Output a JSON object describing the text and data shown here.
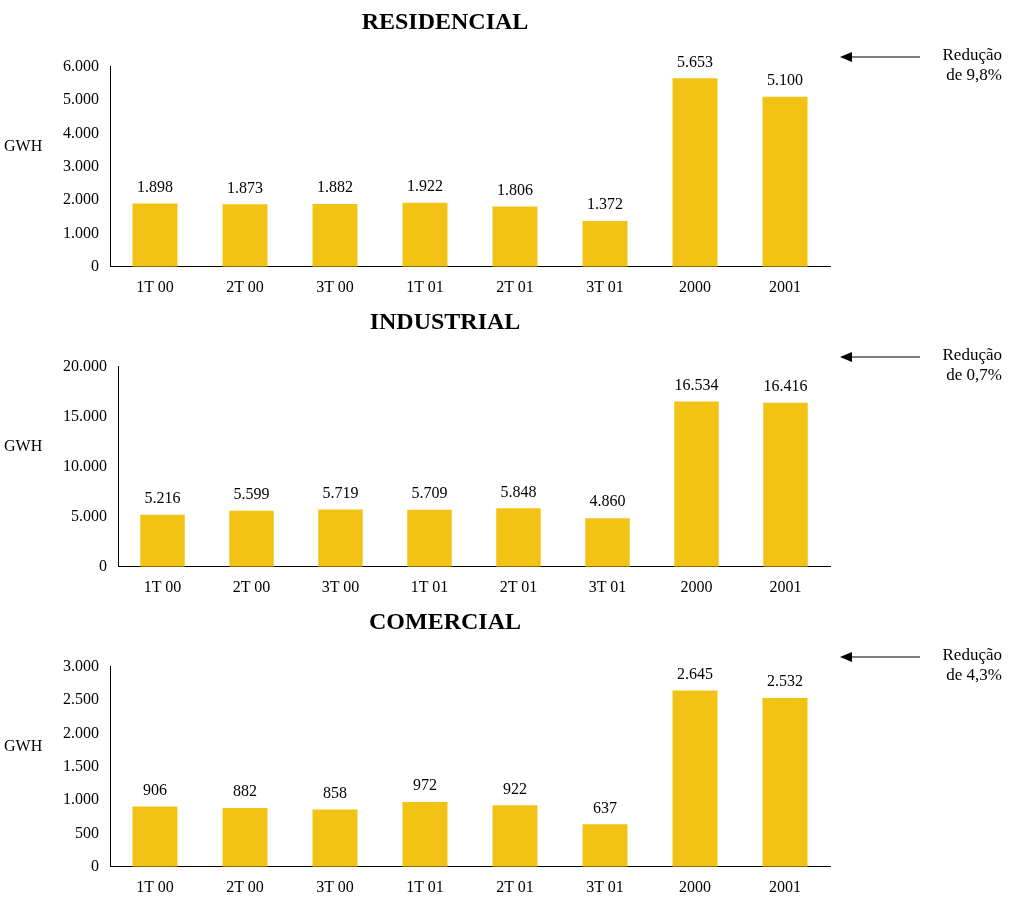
{
  "chart_data": [
    {
      "type": "bar",
      "title": "RESIDENCIAL",
      "ylabel": "GWH",
      "categories": [
        "1T 00",
        "2T 00",
        "3T 00",
        "1T 01",
        "2T 01",
        "3T 01",
        "2000",
        "2001"
      ],
      "values": [
        1898,
        1873,
        1882,
        1922,
        1806,
        1372,
        5653,
        5100
      ],
      "value_labels": [
        "1.898",
        "1.873",
        "1.882",
        "1.922",
        "1.806",
        "1.372",
        "5.653",
        "5.100"
      ],
      "color": "#f2c314",
      "ylim": [
        0,
        6000
      ],
      "yticks": [
        {
          "value": 0,
          "label": "0"
        },
        {
          "value": 1000,
          "label": "1.000"
        },
        {
          "value": 2000,
          "label": "2.000"
        },
        {
          "value": 3000,
          "label": "3.000"
        },
        {
          "value": 4000,
          "label": "4.000"
        },
        {
          "value": 5000,
          "label": "5.000"
        },
        {
          "value": 6000,
          "label": "6.000"
        }
      ],
      "annotations": [
        "Redução de 9,8%"
      ]
    },
    {
      "type": "bar",
      "title": "INDUSTRIAL",
      "ylabel": "GWH",
      "categories": [
        "1T 00",
        "2T 00",
        "3T 00",
        "1T 01",
        "2T 01",
        "3T 01",
        "2000",
        "2001"
      ],
      "values": [
        5216,
        5599,
        5719,
        5709,
        5848,
        4860,
        16534,
        16416
      ],
      "value_labels": [
        "5.216",
        "5.599",
        "5.719",
        "5.709",
        "5.848",
        "4.860",
        "16.534",
        "16.416"
      ],
      "color": "#f2c314",
      "ylim": [
        0,
        20000
      ],
      "yticks": [
        {
          "value": 0,
          "label": "0"
        },
        {
          "value": 5000,
          "label": "5.000"
        },
        {
          "value": 10000,
          "label": "10.000"
        },
        {
          "value": 15000,
          "label": "15.000"
        },
        {
          "value": 20000,
          "label": "20.000"
        }
      ],
      "annotations": [
        "Redução de 0,7%"
      ]
    },
    {
      "type": "bar",
      "title": "COMERCIAL",
      "ylabel": "GWH",
      "categories": [
        "1T 00",
        "2T 00",
        "3T 00",
        "1T 01",
        "2T 01",
        "3T 01",
        "2000",
        "2001"
      ],
      "values": [
        906,
        882,
        858,
        972,
        922,
        637,
        2645,
        2532
      ],
      "value_labels": [
        "906",
        "882",
        "858",
        "972",
        "922",
        "637",
        "2.645",
        "2.532"
      ],
      "color": "#f2c314",
      "ylim": [
        0,
        3000
      ],
      "yticks": [
        {
          "value": 0,
          "label": "0"
        },
        {
          "value": 500,
          "label": "500"
        },
        {
          "value": 1000,
          "label": "1.000"
        },
        {
          "value": 1500,
          "label": "1.500"
        },
        {
          "value": 2000,
          "label": "2.000"
        },
        {
          "value": 2500,
          "label": "2.500"
        },
        {
          "value": 3000,
          "label": "3.000"
        }
      ],
      "annotations": [
        "Redução de 4,3%"
      ]
    }
  ]
}
